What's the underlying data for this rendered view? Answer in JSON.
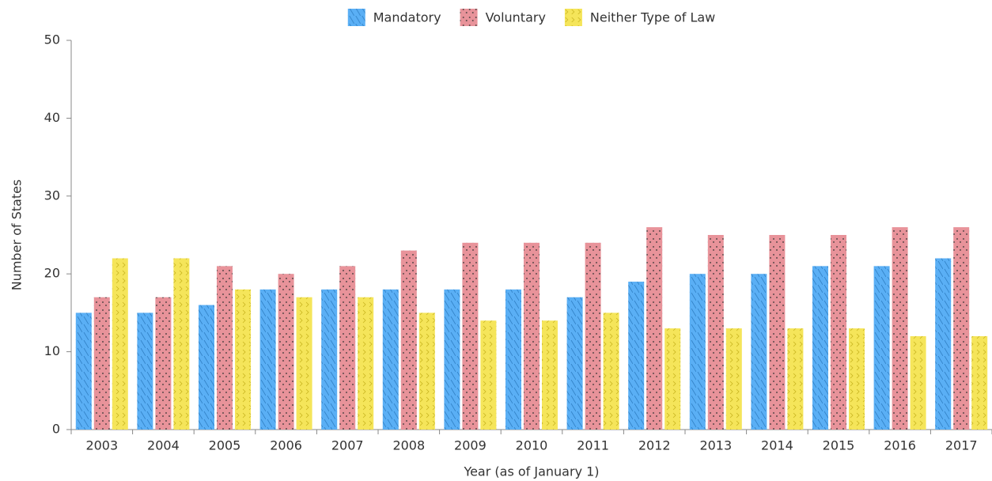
{
  "chart_data": {
    "type": "bar",
    "x_label": "Year (as of January 1)",
    "y_label": "Number of States",
    "categories": [
      "2003",
      "2004",
      "2005",
      "2006",
      "2007",
      "2008",
      "2009",
      "2010",
      "2011",
      "2012",
      "2013",
      "2014",
      "2015",
      "2016",
      "2017"
    ],
    "series": [
      {
        "name": "Mandatory",
        "color": "#5aaff5",
        "values": [
          15,
          15,
          16,
          18,
          18,
          18,
          18,
          18,
          17,
          19,
          20,
          20,
          21,
          21,
          22
        ]
      },
      {
        "name": "Voluntary",
        "color": "#e8939a",
        "values": [
          17,
          17,
          21,
          20,
          21,
          23,
          24,
          24,
          24,
          26,
          25,
          25,
          25,
          26,
          26
        ]
      },
      {
        "name": "Neither Type of Law",
        "color": "#f5e55a",
        "values": [
          22,
          22,
          18,
          17,
          17,
          15,
          14,
          14,
          15,
          13,
          13,
          13,
          13,
          12,
          12
        ]
      }
    ],
    "ylim": [
      0,
      50
    ],
    "yticks": [
      0,
      10,
      20,
      30,
      40,
      50
    ],
    "grid": false,
    "legend": "top"
  }
}
